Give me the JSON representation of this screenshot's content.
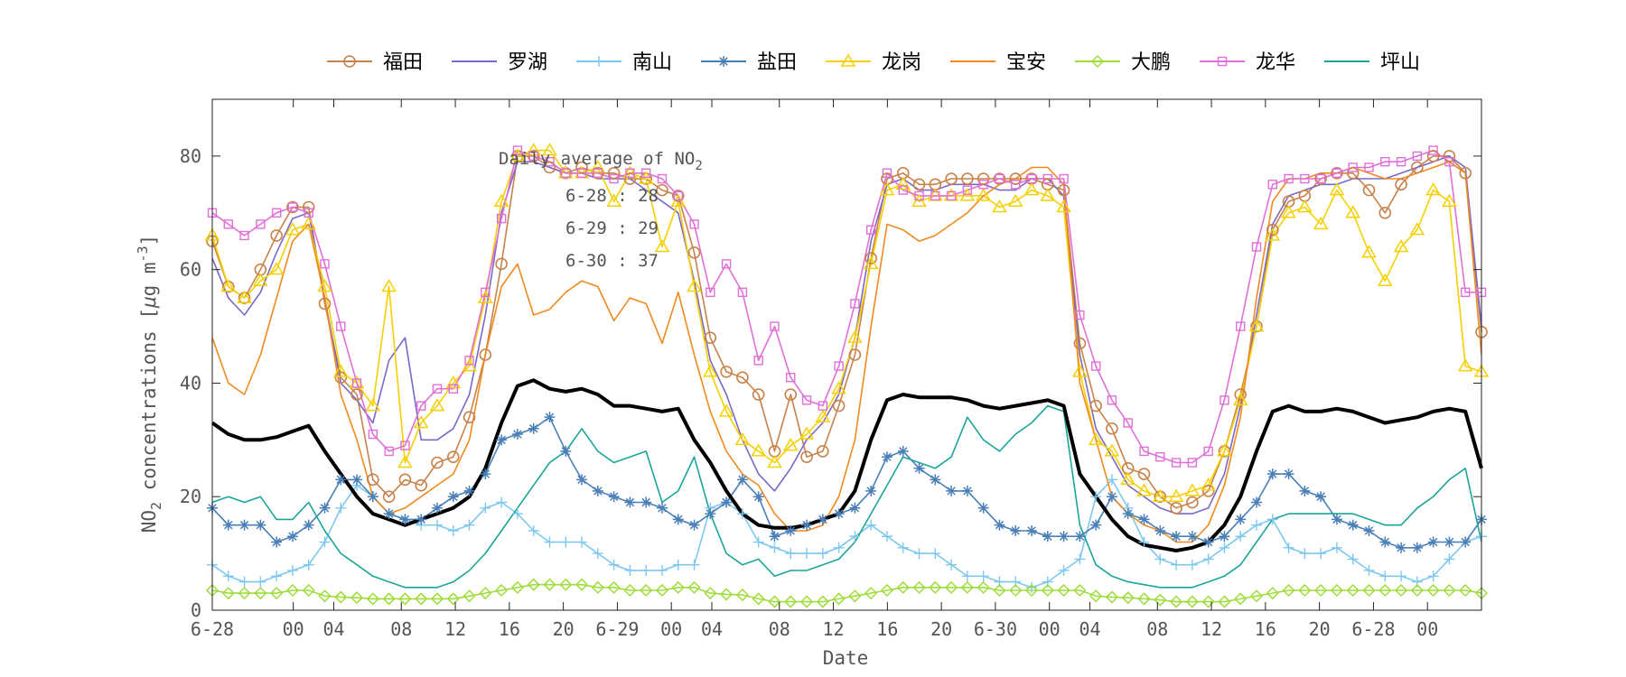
{
  "chart_data": {
    "type": "line",
    "xlabel": "Date",
    "ylabel_main": "NO",
    "ylabel_sub": "2",
    "ylabel_rest": " concentrations [",
    "ylabel_mu": "μ",
    "ylabel_unit": "g m",
    "ylabel_exp": "-3",
    "ylabel_close": "]",
    "ylim": [
      0,
      90
    ],
    "yticks": [
      0,
      20,
      40,
      60,
      80
    ],
    "xlim": [
      0,
      94
    ],
    "xticks": [
      {
        "x": 0,
        "label": "6-28"
      },
      {
        "x": 6,
        "label": "00"
      },
      {
        "x": 9,
        "label": "04"
      },
      {
        "x": 14,
        "label": "08"
      },
      {
        "x": 18,
        "label": "12"
      },
      {
        "x": 22,
        "label": "16"
      },
      {
        "x": 26,
        "label": "20"
      },
      {
        "x": 30,
        "label": "6-29"
      },
      {
        "x": 34,
        "label": "00"
      },
      {
        "x": 37,
        "label": "04"
      },
      {
        "x": 42,
        "label": "08"
      },
      {
        "x": 46,
        "label": "12"
      },
      {
        "x": 50,
        "label": "16"
      },
      {
        "x": 54,
        "label": "20"
      },
      {
        "x": 58,
        "label": "6-30"
      },
      {
        "x": 62,
        "label": "00"
      },
      {
        "x": 65,
        "label": "04"
      },
      {
        "x": 70,
        "label": "08"
      },
      {
        "x": 74,
        "label": "12"
      },
      {
        "x": 78,
        "label": "16"
      },
      {
        "x": 82,
        "label": "20"
      },
      {
        "x": 86,
        "label": "6-28"
      },
      {
        "x": 90,
        "label": "00"
      }
    ],
    "grid": false,
    "legend_position": "top",
    "annotation": {
      "title": "Daily average of NO",
      "title_sub": "2",
      "lines": [
        "6-28 : 28",
        "6-29 : 29",
        "6-30 : 37"
      ]
    },
    "series": [
      {
        "name": "福田",
        "color": "#C8824B",
        "marker": "circle",
        "values": [
          65,
          57,
          55,
          60,
          66,
          71,
          71,
          54,
          41,
          38,
          23,
          20,
          23,
          22,
          26,
          27,
          34,
          45,
          61,
          80,
          80,
          78,
          77,
          78,
          77,
          77,
          76,
          76,
          74,
          73,
          63,
          48,
          42,
          41,
          38,
          28,
          38,
          27,
          28,
          36,
          45,
          62,
          76,
          77,
          75,
          75,
          76,
          76,
          76,
          76,
          76,
          76,
          75,
          74,
          47,
          36,
          32,
          25,
          24,
          20,
          18,
          19,
          21,
          28,
          38,
          50,
          67,
          72,
          73,
          76,
          77,
          77,
          74,
          70,
          75,
          78,
          80,
          80,
          77,
          49
        ]
      },
      {
        "name": "罗湖",
        "color": "#7B68C8",
        "marker": "none",
        "values": [
          62,
          55,
          52,
          56,
          63,
          69,
          70,
          55,
          40,
          37,
          33,
          44,
          48,
          30,
          30,
          32,
          38,
          52,
          70,
          79,
          79,
          78,
          77,
          77,
          76,
          76,
          76,
          74,
          72,
          70,
          58,
          44,
          38,
          30,
          24,
          21,
          25,
          30,
          33,
          38,
          48,
          65,
          75,
          76,
          74,
          74,
          75,
          75,
          75,
          74,
          74,
          76,
          76,
          73,
          45,
          32,
          27,
          22,
          20,
          18,
          17,
          17,
          18,
          24,
          36,
          52,
          68,
          73,
          74,
          75,
          75,
          76,
          76,
          76,
          77,
          78,
          79,
          80,
          78,
          50
        ]
      },
      {
        "name": "南山",
        "color": "#7EC8F0",
        "marker": "plus",
        "values": [
          8,
          6,
          5,
          5,
          6,
          7,
          8,
          12,
          18,
          22,
          20,
          17,
          16,
          15,
          15,
          14,
          15,
          18,
          19,
          17,
          14,
          12,
          12,
          12,
          10,
          8,
          7,
          7,
          7,
          8,
          8,
          18,
          19,
          17,
          12,
          11,
          10,
          10,
          10,
          11,
          13,
          15,
          13,
          11,
          10,
          10,
          8,
          6,
          6,
          5,
          5,
          4,
          5,
          7,
          9,
          20,
          23,
          18,
          12,
          9,
          8,
          8,
          9,
          11,
          13,
          15,
          16,
          11,
          10,
          10,
          11,
          9,
          7,
          6,
          6,
          5,
          6,
          9,
          12,
          13
        ]
      },
      {
        "name": "盐田",
        "color": "#4A7FB8",
        "marker": "star",
        "values": [
          18,
          15,
          15,
          15,
          12,
          13,
          15,
          18,
          23,
          23,
          20,
          17,
          16,
          16,
          18,
          20,
          21,
          24,
          30,
          31,
          32,
          34,
          28,
          23,
          21,
          20,
          19,
          19,
          18,
          16,
          15,
          17,
          19,
          23,
          20,
          13,
          14,
          15,
          16,
          17,
          18,
          21,
          27,
          28,
          25,
          23,
          21,
          21,
          18,
          15,
          14,
          14,
          13,
          13,
          13,
          15,
          20,
          17,
          16,
          14,
          13,
          13,
          12,
          13,
          16,
          19,
          24,
          24,
          21,
          20,
          16,
          15,
          14,
          12,
          11,
          11,
          12,
          12,
          12,
          16
        ]
      },
      {
        "name": "龙岗",
        "color": "#F5D000",
        "marker": "triangle",
        "values": [
          66,
          57,
          55,
          58,
          60,
          67,
          68,
          57,
          42,
          40,
          36,
          57,
          26,
          33,
          36,
          40,
          43,
          55,
          72,
          80,
          81,
          81,
          77,
          77,
          78,
          72,
          77,
          76,
          64,
          72,
          57,
          42,
          35,
          30,
          28,
          26,
          29,
          31,
          34,
          39,
          48,
          61,
          74,
          75,
          72,
          73,
          73,
          73,
          73,
          71,
          72,
          74,
          73,
          71,
          42,
          30,
          28,
          23,
          21,
          20,
          20,
          21,
          22,
          28,
          37,
          50,
          66,
          70,
          71,
          68,
          74,
          70,
          63,
          58,
          64,
          67,
          74,
          72,
          43,
          42
        ]
      },
      {
        "name": "宝安",
        "color": "#F08A1E",
        "marker": "none",
        "values": [
          48,
          40,
          38,
          45,
          55,
          65,
          68,
          55,
          38,
          30,
          20,
          17,
          18,
          20,
          22,
          24,
          30,
          45,
          57,
          61,
          52,
          53,
          56,
          58,
          57,
          51,
          55,
          54,
          47,
          56,
          45,
          35,
          28,
          24,
          22,
          17,
          14,
          14,
          15,
          20,
          30,
          50,
          68,
          67,
          65,
          66,
          68,
          70,
          73,
          75,
          76,
          78,
          78,
          75,
          40,
          30,
          20,
          17,
          15,
          14,
          12,
          12,
          15,
          22,
          34,
          55,
          72,
          76,
          76,
          77,
          77,
          78,
          77,
          76,
          76,
          77,
          78,
          79,
          77,
          45
        ]
      },
      {
        "name": "大鹏",
        "color": "#9EDC3C",
        "marker": "diamond",
        "values": [
          3.5,
          3,
          3,
          3,
          3,
          3.5,
          3.5,
          2.5,
          2.3,
          2.2,
          2,
          2,
          2,
          2,
          2,
          2,
          2.5,
          3,
          3.5,
          4,
          4.5,
          4.5,
          4.5,
          4.5,
          4,
          4,
          3.5,
          3.5,
          3.5,
          4,
          4,
          3,
          2.8,
          2.7,
          2,
          1.5,
          1.5,
          1.5,
          1.5,
          2,
          2.5,
          3,
          3.5,
          4,
          4,
          4,
          4,
          4,
          4,
          3.5,
          3.5,
          3.5,
          3.5,
          3.5,
          3.5,
          2.5,
          2.3,
          2.2,
          2,
          1.8,
          1.5,
          1.5,
          1.5,
          1.5,
          2,
          2.5,
          3,
          3.5,
          3.5,
          3.5,
          3.5,
          3.5,
          3.5,
          3.5,
          3.5,
          3.5,
          3.5,
          3.5,
          3.5,
          3
        ]
      },
      {
        "name": "龙华",
        "color": "#E070D8",
        "marker": "square",
        "values": [
          70,
          68,
          66,
          68,
          70,
          71,
          70,
          61,
          50,
          40,
          31,
          28,
          29,
          36,
          39,
          39,
          44,
          56,
          69,
          81,
          80,
          79,
          77,
          77,
          77,
          76,
          77,
          77,
          76,
          73,
          68,
          56,
          61,
          56,
          44,
          50,
          41,
          37,
          36,
          43,
          54,
          67,
          77,
          74,
          73,
          73,
          73,
          74,
          75,
          76,
          75,
          76,
          76,
          76,
          52,
          43,
          37,
          33,
          28,
          27,
          26,
          26,
          28,
          37,
          50,
          64,
          75,
          76,
          76,
          76,
          77,
          78,
          78,
          79,
          79,
          80,
          81,
          79,
          56,
          56
        ]
      },
      {
        "name": "坪山",
        "color": "#1AA598",
        "marker": "none",
        "values": [
          19,
          20,
          19,
          20,
          16,
          16,
          19,
          14,
          10,
          8,
          6,
          5,
          4,
          4,
          4,
          5,
          7,
          10,
          14,
          18,
          22,
          26,
          28,
          32,
          28,
          26,
          27,
          28,
          19,
          21,
          27,
          17,
          10,
          8,
          9,
          6,
          7,
          7,
          8,
          9,
          12,
          17,
          22,
          27,
          26,
          25,
          27,
          34,
          30,
          28,
          31,
          33,
          36,
          35,
          15,
          8,
          6,
          5,
          4.5,
          4,
          4,
          4,
          5,
          6,
          8,
          12,
          16,
          17,
          17,
          17,
          17,
          17,
          16,
          15,
          15,
          18,
          20,
          23,
          25,
          12
        ]
      },
      {
        "name": "",
        "color": "#000000",
        "marker": "none",
        "bold": true,
        "values": [
          33,
          31,
          30,
          30,
          30.5,
          31.5,
          32.5,
          28,
          24,
          20,
          17,
          16,
          15,
          16,
          17,
          18,
          20,
          25,
          33,
          39.5,
          40.5,
          39,
          38.5,
          39,
          38,
          36,
          36,
          35.5,
          35,
          35.5,
          30,
          26,
          21,
          17,
          15,
          14.5,
          14.5,
          15,
          16,
          17,
          21,
          30,
          37,
          38,
          37.5,
          37.5,
          37.5,
          37,
          36,
          35.5,
          36,
          36.5,
          37,
          36,
          24,
          20,
          16,
          13,
          11.5,
          11,
          10.5,
          11,
          12,
          15,
          20,
          28,
          35,
          36,
          35,
          35,
          35.5,
          35,
          34,
          33,
          33.5,
          34,
          35,
          35.5,
          35,
          25
        ]
      }
    ]
  }
}
